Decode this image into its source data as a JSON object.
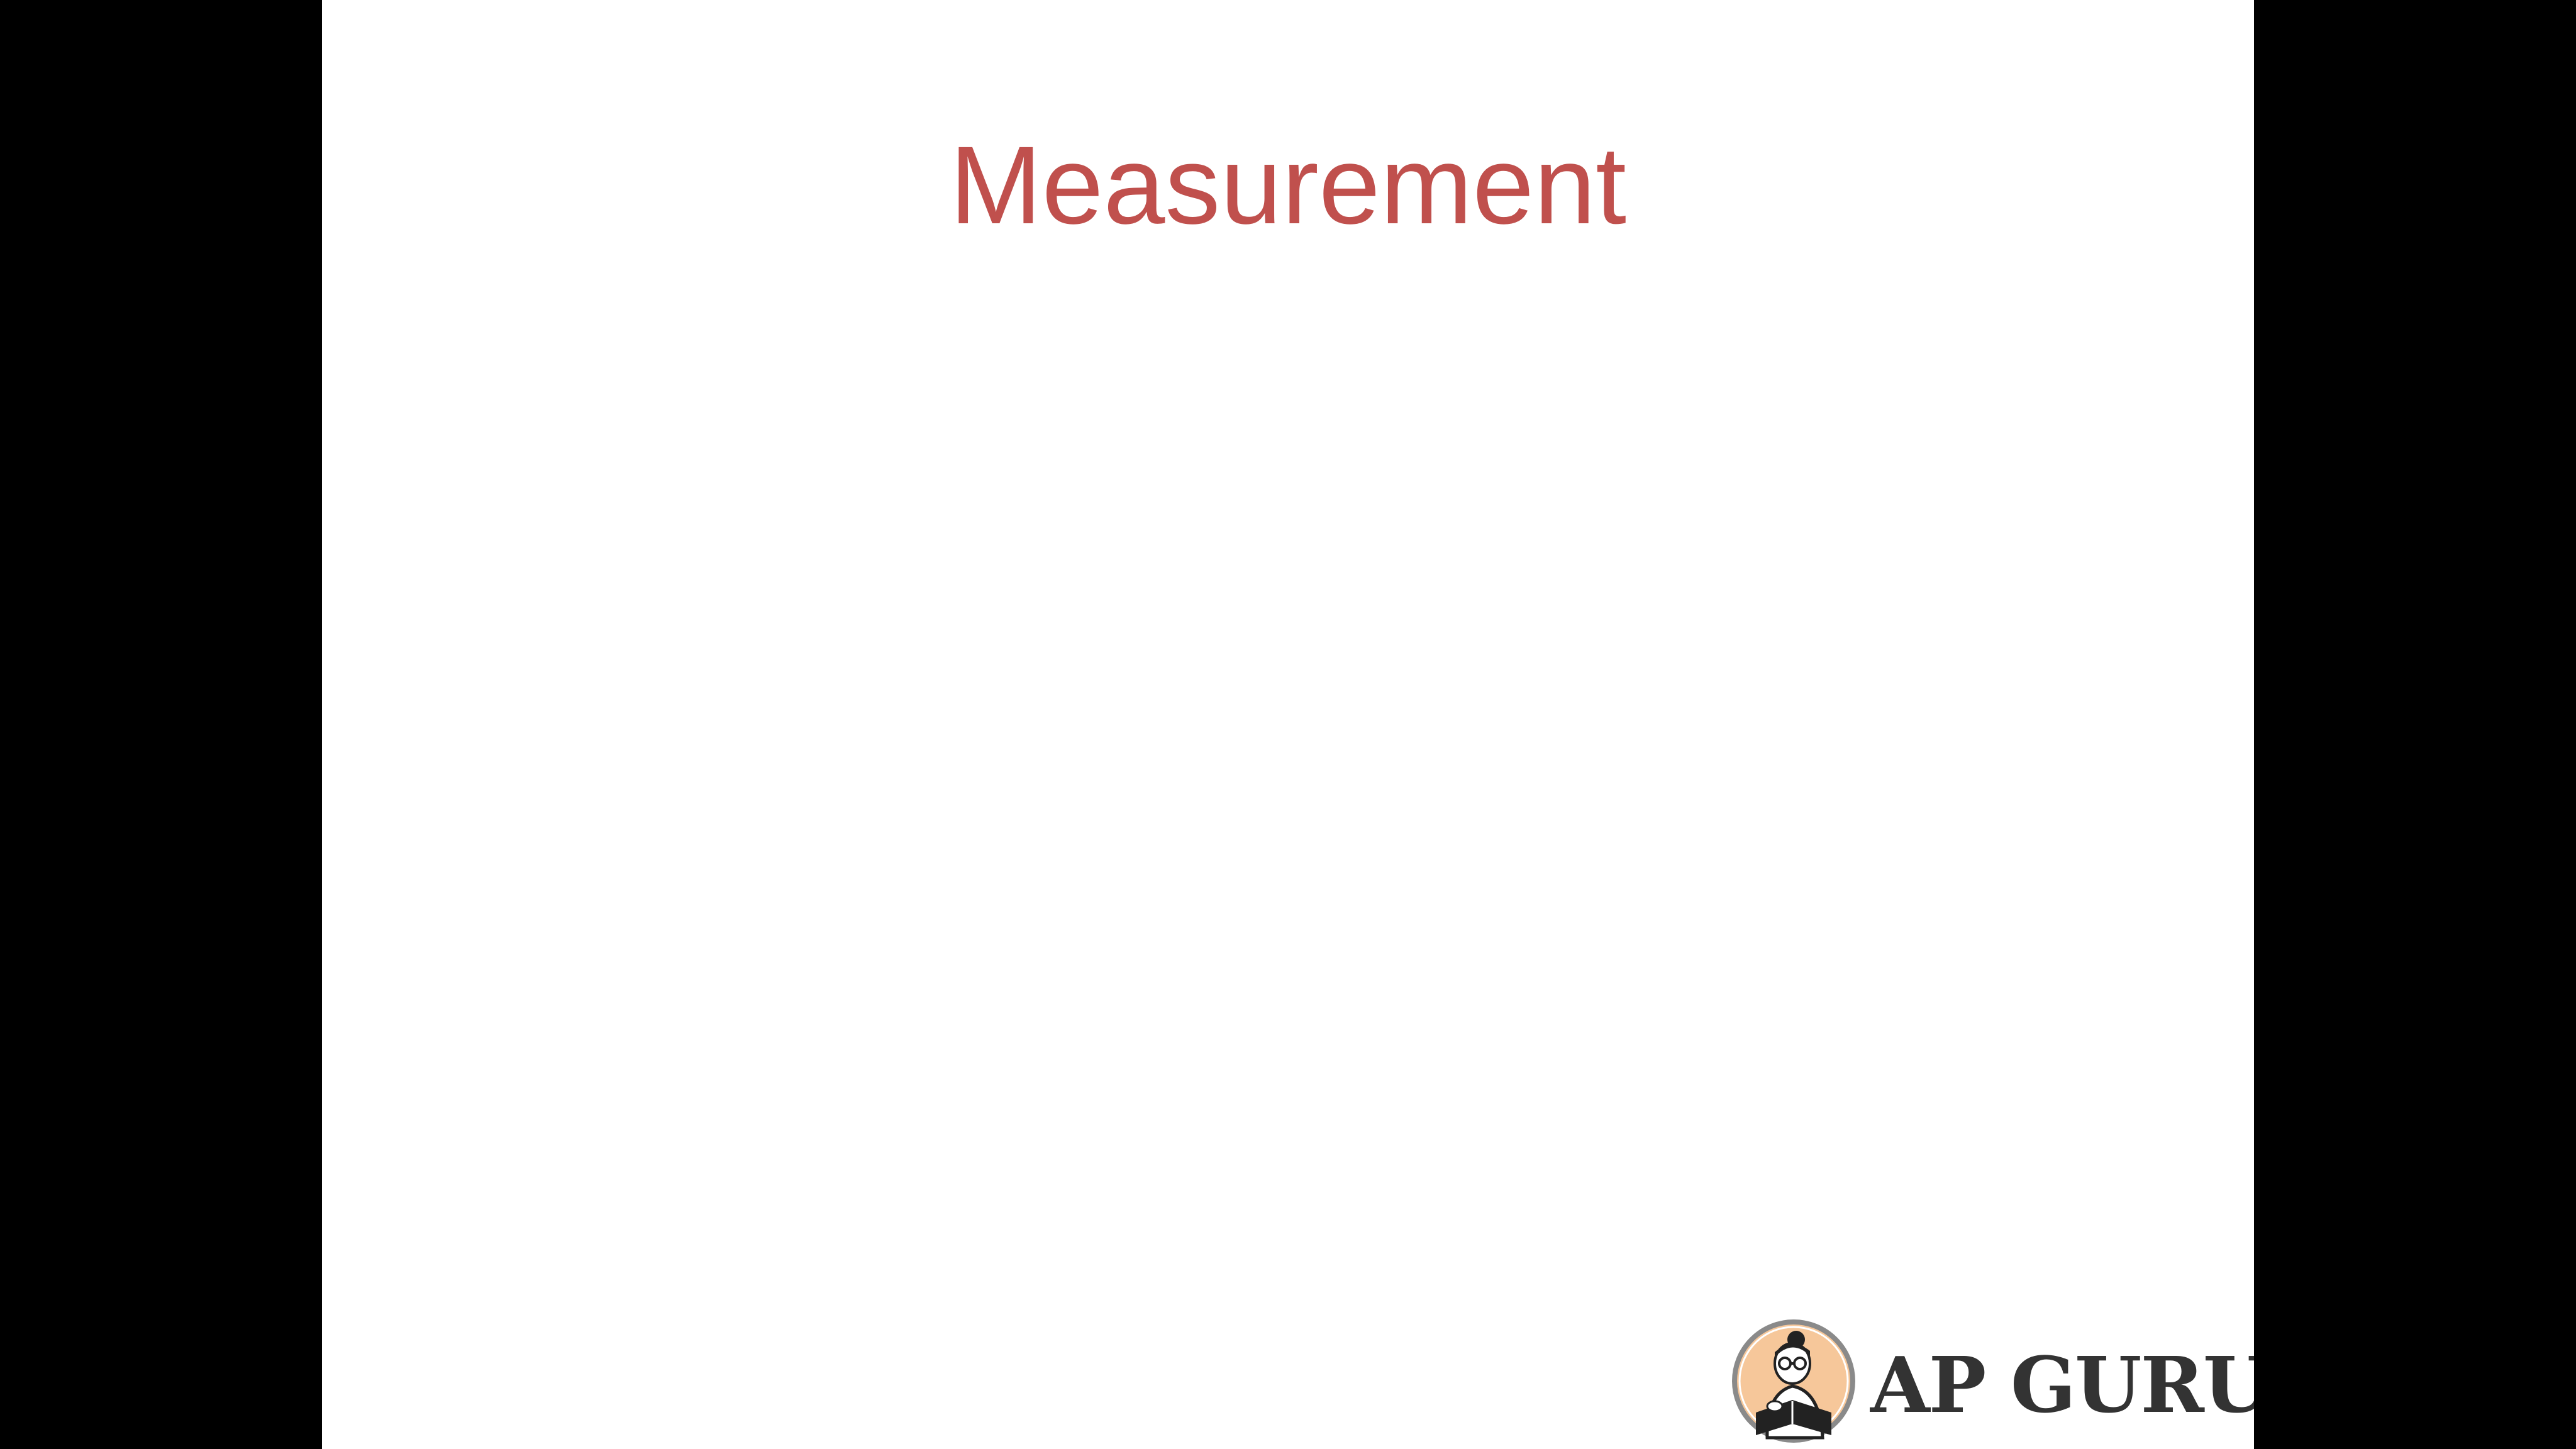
{
  "slide": {
    "title": "Measurement"
  },
  "logo": {
    "text": "AP GURU",
    "emblem_icon": "reading-person-icon"
  },
  "colors": {
    "background": "#000000",
    "slide": "#ffffff",
    "title": "#c0504d",
    "logo_text": "#333333",
    "emblem_fill": "#f6c79a"
  }
}
